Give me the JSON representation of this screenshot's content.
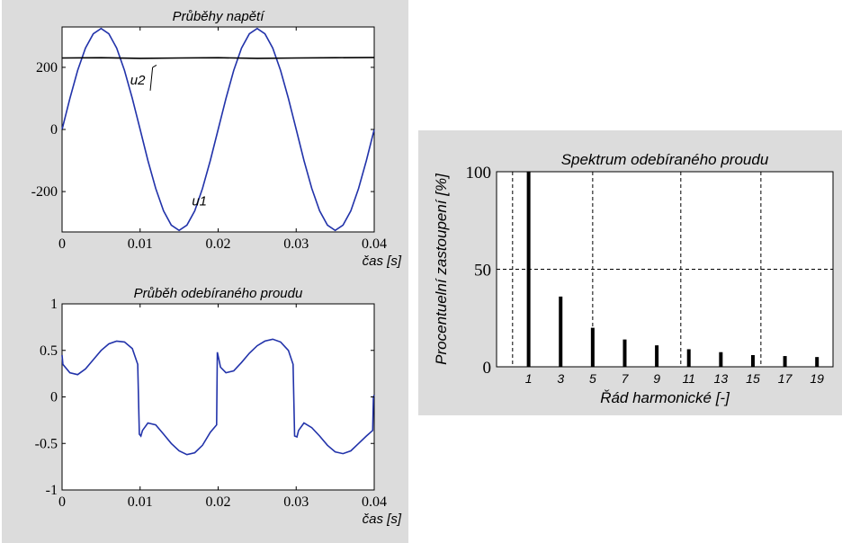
{
  "charts": [
    {
      "id": "voltage",
      "type": "line",
      "title": "Průběhy napětí",
      "xlabel": "čas [s]",
      "ylabel": "",
      "xlim": [
        0,
        0.04
      ],
      "ylim": [
        -330,
        330
      ],
      "xticks": [
        0,
        0.01,
        0.02,
        0.03,
        0.04
      ],
      "xtick_labels": [
        "0",
        "0.01",
        "0.02",
        "0.03",
        "0.04"
      ],
      "yticks": [
        200,
        0,
        -200
      ],
      "ytick_labels": [
        "200",
        "0",
        "-200"
      ],
      "grid": false,
      "series": [
        {
          "name": "u1",
          "color": "#2233aa",
          "x": [
            0,
            0.001,
            0.002,
            0.003,
            0.004,
            0.005,
            0.006,
            0.007,
            0.008,
            0.009,
            0.01,
            0.011,
            0.012,
            0.013,
            0.014,
            0.015,
            0.016,
            0.017,
            0.018,
            0.019,
            0.02,
            0.021,
            0.022,
            0.023,
            0.024,
            0.025,
            0.026,
            0.027,
            0.028,
            0.029,
            0.03,
            0.031,
            0.032,
            0.033,
            0.034,
            0.035,
            0.036,
            0.037,
            0.038,
            0.039,
            0.04
          ],
          "y": [
            0,
            100,
            190,
            262,
            308,
            325,
            308,
            262,
            190,
            100,
            0,
            -100,
            -190,
            -262,
            -308,
            -325,
            -308,
            -262,
            -190,
            -100,
            0,
            100,
            190,
            262,
            308,
            325,
            308,
            262,
            190,
            100,
            0,
            -100,
            -190,
            -262,
            -308,
            -325,
            -308,
            -262,
            -190,
            -100,
            0
          ]
        },
        {
          "name": "u2",
          "color": "#000000",
          "x": [
            0,
            0.005,
            0.01,
            0.015,
            0.02,
            0.025,
            0.03,
            0.035,
            0.04
          ],
          "y": [
            230,
            231,
            229,
            230,
            231,
            229,
            230,
            231,
            232
          ]
        }
      ],
      "annotations": [
        {
          "text": "u2",
          "x": 0.0097,
          "y": 145
        },
        {
          "text": "u1",
          "x": 0.0176,
          "y": -245
        }
      ]
    },
    {
      "id": "current",
      "type": "line",
      "title": "Průběh odebíraného proudu",
      "xlabel": "čas [s]",
      "ylabel": "",
      "xlim": [
        0,
        0.04
      ],
      "ylim": [
        -1,
        1
      ],
      "xticks": [
        0,
        0.01,
        0.02,
        0.03,
        0.04
      ],
      "xtick_labels": [
        "0",
        "0.01",
        "0.02",
        "0.03",
        "0.04"
      ],
      "yticks": [
        1,
        0.5,
        0,
        -0.5,
        -1
      ],
      "ytick_labels": [
        "1",
        "0.5",
        "0",
        "-0.5",
        "-1"
      ],
      "grid": false,
      "series": [
        {
          "name": "",
          "color": "#2233aa",
          "x": [
            0,
            0.0001,
            0.001,
            0.002,
            0.003,
            0.004,
            0.005,
            0.006,
            0.007,
            0.008,
            0.009,
            0.0097,
            0.0099,
            0.0101,
            0.0103,
            0.011,
            0.012,
            0.013,
            0.014,
            0.015,
            0.016,
            0.017,
            0.018,
            0.019,
            0.0198,
            0.0199,
            0.0201,
            0.0203,
            0.021,
            0.022,
            0.023,
            0.024,
            0.025,
            0.026,
            0.027,
            0.028,
            0.029,
            0.0296,
            0.0298,
            0.0301,
            0.0303,
            0.031,
            0.032,
            0.033,
            0.034,
            0.035,
            0.036,
            0.037,
            0.038,
            0.039,
            0.0398,
            0.0399,
            0.04
          ],
          "y": [
            0.45,
            0.35,
            0.26,
            0.24,
            0.3,
            0.4,
            0.5,
            0.57,
            0.6,
            0.59,
            0.52,
            0.35,
            -0.4,
            -0.42,
            -0.36,
            -0.28,
            -0.3,
            -0.4,
            -0.5,
            -0.58,
            -0.62,
            -0.6,
            -0.52,
            -0.38,
            -0.3,
            0.48,
            0.4,
            0.32,
            0.26,
            0.28,
            0.37,
            0.47,
            0.55,
            0.6,
            0.62,
            0.59,
            0.5,
            0.35,
            -0.42,
            -0.43,
            -0.36,
            -0.28,
            -0.33,
            -0.42,
            -0.52,
            -0.59,
            -0.61,
            -0.58,
            -0.5,
            -0.42,
            -0.36,
            0.0,
            0.02
          ]
        }
      ],
      "annotations": []
    },
    {
      "id": "spectrum",
      "type": "bar",
      "title": "Spektrum odebíraného proudu",
      "xlabel": "Řád harmonické [-]",
      "ylabel": "Procentuelní zastoupení [%]",
      "xlim": [
        -1,
        20
      ],
      "ylim": [
        0,
        100
      ],
      "categories": [
        "1",
        "3",
        "5",
        "7",
        "9",
        "11",
        "13",
        "15",
        "17",
        "19"
      ],
      "x": [
        1,
        3,
        5,
        7,
        9,
        11,
        13,
        15,
        17,
        19
      ],
      "values": [
        100,
        36,
        20,
        14,
        11,
        9,
        7.5,
        6,
        5.5,
        5
      ],
      "xtick_labels": [
        "1",
        "3",
        "5",
        "7",
        "9",
        "11",
        "13",
        "15",
        "17",
        "19"
      ],
      "yticks": [
        100,
        50,
        0
      ],
      "ytick_labels": [
        "100",
        "50",
        "0"
      ],
      "grid": true,
      "gridlines_x": [
        0,
        5,
        10.5,
        15.5
      ],
      "gridlines_y": [
        50
      ],
      "bar_color": "#000000"
    }
  ]
}
